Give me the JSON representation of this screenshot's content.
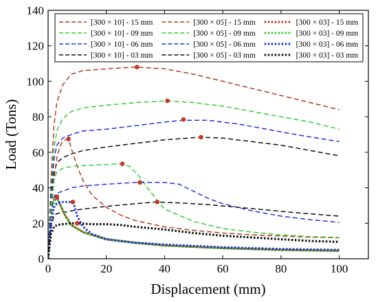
{
  "chart_data": {
    "type": "line",
    "xlabel": "Displacement (mm)",
    "ylabel": "Load (Tons)",
    "xlim": [
      0,
      110
    ],
    "ylim": [
      0,
      140
    ],
    "xticks": [
      0,
      20,
      40,
      60,
      80,
      100
    ],
    "yticks": [
      0,
      20,
      40,
      60,
      80,
      100,
      120,
      140
    ],
    "xtick_labels": [
      "0",
      "20",
      "40",
      "60",
      "80",
      "100"
    ],
    "ytick_labels": [
      "0",
      "20",
      "40",
      "60",
      "80",
      "100",
      "120",
      "140"
    ],
    "grid": false,
    "legend_position": "top",
    "peak_marker_color": "#c0392b",
    "series": [
      {
        "name": "[300 × 10] - 15 mm",
        "color": "#b03a1e",
        "style": "dash",
        "x": [
          0,
          1,
          2,
          3,
          5,
          8,
          12,
          20,
          30,
          40,
          50,
          60,
          70,
          80,
          90,
          100
        ],
        "y": [
          0,
          45,
          75,
          88,
          98,
          104,
          106,
          107,
          108,
          107,
          104,
          100,
          96,
          92,
          88,
          84
        ],
        "peak": [
          30.5,
          108
        ]
      },
      {
        "name": "[300 × 10] - 09 mm",
        "color": "#33cc33",
        "style": "dash",
        "x": [
          0,
          1,
          2,
          3,
          5,
          8,
          12,
          20,
          30,
          41,
          50,
          60,
          70,
          80,
          90,
          100
        ],
        "y": [
          0,
          38,
          62,
          72,
          79,
          83,
          85,
          86.5,
          88,
          89,
          88,
          86,
          83,
          80,
          77,
          73
        ],
        "peak": [
          41,
          89
        ]
      },
      {
        "name": "[300 × 10] - 06 mm",
        "color": "#2233dd",
        "style": "dash",
        "x": [
          0,
          1,
          2,
          3,
          5,
          8,
          12,
          20,
          30,
          40,
          46,
          55,
          65,
          75,
          85,
          100
        ],
        "y": [
          0,
          35,
          56,
          64,
          68,
          70,
          72,
          73,
          75,
          77,
          78,
          78,
          76,
          73,
          70,
          66
        ],
        "peak": [
          46.5,
          78.5
        ]
      },
      {
        "name": "[300 × 10] - 03 mm",
        "color": "#111111",
        "style": "dash",
        "x": [
          0,
          1,
          2,
          3,
          5,
          8,
          12,
          20,
          30,
          40,
          52,
          60,
          70,
          80,
          90,
          100
        ],
        "y": [
          0,
          30,
          48,
          54,
          57,
          59,
          61,
          63,
          65,
          67,
          68.5,
          68,
          66,
          64,
          61,
          58
        ],
        "peak": [
          52.5,
          68.5
        ]
      },
      {
        "name": "[300 × 05] - 15 mm",
        "color": "#b03a1e",
        "style": "dash",
        "x": [
          0,
          1,
          2,
          3,
          4,
          5,
          6,
          7,
          8,
          10,
          12,
          15,
          20,
          25,
          30,
          40,
          50,
          60,
          70,
          80,
          90,
          100
        ],
        "y": [
          0,
          25,
          45,
          57,
          63,
          66,
          67,
          67.5,
          62,
          52,
          44,
          36,
          29,
          24.5,
          21.5,
          18,
          16,
          14.5,
          13.5,
          12.8,
          12.2,
          11.8
        ],
        "peak": [
          7,
          67.5
        ]
      },
      {
        "name": "[300 × 05] - 09 mm",
        "color": "#33cc33",
        "style": "dash",
        "x": [
          0,
          1,
          2,
          3,
          5,
          8,
          12,
          18,
          25,
          28,
          31,
          35,
          40,
          50,
          60,
          70,
          80,
          90,
          100
        ],
        "y": [
          0,
          30,
          44,
          49,
          51,
          52,
          52.5,
          53,
          53.5,
          52,
          47,
          38,
          28,
          21,
          17,
          15,
          13.5,
          12.5,
          12
        ],
        "peak": [
          25.5,
          53.5
        ]
      },
      {
        "name": "[300 × 05] - 06 mm",
        "color": "#2233dd",
        "style": "dash",
        "x": [
          0,
          1,
          2,
          3,
          5,
          8,
          12,
          20,
          30,
          40,
          45,
          50,
          55,
          60,
          70,
          80,
          90,
          100
        ],
        "y": [
          0,
          25,
          35,
          37,
          38,
          40,
          41,
          42,
          43,
          43,
          42,
          38,
          34,
          31,
          27,
          24,
          22,
          20.5
        ],
        "peak": [
          31.5,
          43
        ]
      },
      {
        "name": "[300 × 05] - 03 mm",
        "color": "#111111",
        "style": "dash",
        "x": [
          0,
          1,
          2,
          3,
          5,
          8,
          12,
          20,
          30,
          37,
          45,
          55,
          65,
          75,
          85,
          100
        ],
        "y": [
          0,
          18,
          24,
          25.5,
          26,
          27,
          28,
          29.5,
          31,
          32,
          31.5,
          30.5,
          29,
          27.5,
          26,
          24
        ],
        "peak": [
          37.5,
          32
        ]
      },
      {
        "name": "[300 × 03] - 15 mm",
        "color": "#b03a1e",
        "style": "dot",
        "x": [
          0,
          1,
          2,
          3,
          4,
          6,
          8,
          12,
          20,
          30,
          40,
          60,
          80,
          100
        ],
        "y": [
          0,
          22,
          33,
          35,
          31,
          24,
          19,
          15,
          11,
          9,
          7.5,
          6,
          5,
          4.5
        ],
        "peak": [
          3,
          35
        ]
      },
      {
        "name": "[300 × 03] - 09 mm",
        "color": "#33cc33",
        "style": "dot",
        "x": [
          0,
          1,
          2,
          3,
          4,
          6,
          8,
          12,
          20,
          30,
          40,
          60,
          80,
          100
        ],
        "y": [
          0,
          21,
          32,
          34.5,
          31,
          24,
          19,
          15,
          11,
          9,
          7.5,
          6,
          5,
          4.5
        ],
        "peak": [
          3,
          34.5
        ]
      },
      {
        "name": "[300 × 03] - 06 mm",
        "color": "#2233dd",
        "style": "dot",
        "x": [
          0,
          1,
          2,
          3,
          5,
          8,
          9,
          10,
          12,
          15,
          20,
          30,
          40,
          60,
          80,
          100
        ],
        "y": [
          0,
          20,
          29,
          31,
          32,
          32,
          30,
          24,
          18,
          14,
          11,
          9,
          8,
          6.5,
          5.5,
          5
        ],
        "peak": [
          8.5,
          32
        ]
      },
      {
        "name": "[300 × 03] - 03 mm",
        "color": "#111111",
        "style": "dot",
        "x": [
          0,
          1,
          2,
          3,
          5,
          8,
          10,
          15,
          20,
          25,
          30,
          40,
          50,
          60,
          70,
          80,
          90,
          100
        ],
        "y": [
          0,
          14,
          18,
          19,
          19.5,
          20,
          20,
          19.5,
          19.5,
          19,
          18,
          16.5,
          14.5,
          13,
          12,
          11,
          10,
          9.5
        ],
        "peak": [
          10,
          20
        ]
      }
    ]
  }
}
